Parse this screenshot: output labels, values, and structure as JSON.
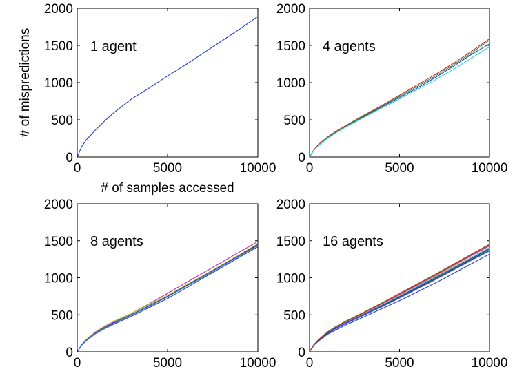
{
  "chart_data": [
    {
      "type": "line",
      "annotation": "1 agent",
      "xlabel": "# of samples accessed",
      "ylabel": "# of mispredictions",
      "xlim": [
        0,
        10000
      ],
      "ylim": [
        0,
        2000
      ],
      "xticks": [
        "0",
        "5000",
        "10000"
      ],
      "yticks": [
        "0",
        "500",
        "1000",
        "1500",
        "2000"
      ],
      "grid": false,
      "series": [
        {
          "color": "#1f3bdc",
          "x": [
            0,
            250,
            500,
            1000,
            1500,
            2000,
            3000,
            4000,
            5000,
            6000,
            7000,
            8000,
            9000,
            10000
          ],
          "y": [
            0,
            140,
            230,
            360,
            480,
            590,
            780,
            930,
            1090,
            1240,
            1400,
            1560,
            1720,
            1890
          ]
        }
      ]
    },
    {
      "type": "line",
      "annotation": "4 agents",
      "xlabel": "",
      "ylabel": "",
      "xlim": [
        0,
        10000
      ],
      "ylim": [
        0,
        2000
      ],
      "xticks": [
        "0",
        "5000",
        "10000"
      ],
      "yticks": [
        "0",
        "500",
        "1000",
        "1500",
        "2000"
      ],
      "grid": false,
      "series": [
        {
          "color": "#1f3bdc",
          "x": [
            0,
            250,
            500,
            1000,
            1500,
            2000,
            3000,
            4000,
            5000,
            6000,
            7000,
            8000,
            9000,
            10000
          ],
          "y": [
            0,
            100,
            160,
            260,
            340,
            410,
            540,
            670,
            800,
            930,
            1070,
            1220,
            1380,
            1520
          ]
        },
        {
          "color": "#d62020",
          "x": [
            0,
            250,
            500,
            1000,
            1500,
            2000,
            3000,
            4000,
            5000,
            6000,
            7000,
            8000,
            9000,
            10000
          ],
          "y": [
            0,
            100,
            170,
            270,
            350,
            420,
            560,
            690,
            830,
            970,
            1110,
            1260,
            1420,
            1590
          ]
        },
        {
          "color": "#2a9a2a",
          "x": [
            0,
            250,
            500,
            1000,
            1500,
            2000,
            3000,
            4000,
            5000,
            6000,
            7000,
            8000,
            9000,
            10000
          ],
          "y": [
            0,
            95,
            160,
            260,
            340,
            410,
            550,
            680,
            815,
            950,
            1090,
            1240,
            1400,
            1570
          ]
        },
        {
          "color": "#22d4d4",
          "x": [
            0,
            250,
            500,
            1000,
            1500,
            2000,
            3000,
            4000,
            5000,
            6000,
            7000,
            8000,
            9000,
            10000
          ],
          "y": [
            0,
            95,
            155,
            250,
            330,
            400,
            530,
            655,
            780,
            910,
            1040,
            1180,
            1330,
            1480
          ]
        }
      ]
    },
    {
      "type": "line",
      "annotation": "8 agents",
      "xlabel": "",
      "ylabel": "",
      "xlim": [
        0,
        10000
      ],
      "ylim": [
        0,
        2000
      ],
      "xticks": [
        "0",
        "5000",
        "10000"
      ],
      "yticks": [
        "0",
        "500",
        "1000",
        "1500",
        "2000"
      ],
      "grid": false,
      "series": [
        {
          "color": "#1f3bdc",
          "x": [
            0,
            250,
            500,
            1000,
            1500,
            2000,
            3000,
            4000,
            5000,
            6000,
            7000,
            8000,
            9000,
            10000
          ],
          "y": [
            0,
            90,
            150,
            240,
            310,
            370,
            480,
            600,
            720,
            860,
            1000,
            1140,
            1280,
            1420
          ]
        },
        {
          "color": "#d62020",
          "x": [
            0,
            250,
            500,
            1000,
            1500,
            2000,
            3000,
            4000,
            5000,
            6000,
            7000,
            8000,
            9000,
            10000
          ],
          "y": [
            0,
            95,
            155,
            250,
            320,
            385,
            500,
            620,
            745,
            885,
            1020,
            1160,
            1300,
            1445
          ]
        },
        {
          "color": "#2a9a2a",
          "x": [
            0,
            250,
            500,
            1000,
            1500,
            2000,
            3000,
            4000,
            5000,
            6000,
            7000,
            8000,
            9000,
            10000
          ],
          "y": [
            0,
            95,
            160,
            255,
            325,
            390,
            505,
            625,
            750,
            890,
            1030,
            1170,
            1310,
            1460
          ]
        },
        {
          "color": "#22d4d4",
          "x": [
            0,
            250,
            500,
            1000,
            1500,
            2000,
            3000,
            4000,
            5000,
            6000,
            7000,
            8000,
            9000,
            10000
          ],
          "y": [
            0,
            90,
            150,
            245,
            315,
            380,
            495,
            615,
            740,
            880,
            1015,
            1155,
            1295,
            1440
          ]
        },
        {
          "color": "#c026c0",
          "x": [
            0,
            250,
            500,
            1000,
            1500,
            2000,
            3000,
            4000,
            5000,
            6000,
            7000,
            8000,
            9000,
            10000
          ],
          "y": [
            0,
            100,
            165,
            260,
            335,
            400,
            520,
            650,
            790,
            930,
            1070,
            1210,
            1350,
            1490
          ]
        },
        {
          "color": "#c8c020",
          "x": [
            0,
            250,
            500,
            1000,
            1500,
            2000,
            3000,
            4000,
            5000,
            6000,
            7000,
            8000,
            9000,
            10000
          ],
          "y": [
            0,
            100,
            170,
            270,
            345,
            410,
            520,
            640,
            765,
            900,
            1035,
            1175,
            1315,
            1460
          ]
        },
        {
          "color": "#3a3a3a",
          "x": [
            0,
            250,
            500,
            1000,
            1500,
            2000,
            3000,
            4000,
            5000,
            6000,
            7000,
            8000,
            9000,
            10000
          ],
          "y": [
            0,
            95,
            158,
            252,
            322,
            386,
            502,
            622,
            748,
            888,
            1025,
            1165,
            1305,
            1450
          ]
        },
        {
          "color": "#4466ee",
          "x": [
            0,
            250,
            500,
            1000,
            1500,
            2000,
            3000,
            4000,
            5000,
            6000,
            7000,
            8000,
            9000,
            10000
          ],
          "y": [
            0,
            92,
            152,
            248,
            318,
            382,
            498,
            618,
            742,
            882,
            1018,
            1158,
            1298,
            1435
          ]
        }
      ]
    },
    {
      "type": "line",
      "annotation": "16 agents",
      "xlabel": "",
      "ylabel": "",
      "xlim": [
        0,
        10000
      ],
      "ylim": [
        0,
        2000
      ],
      "xticks": [
        "0",
        "5000",
        "10000"
      ],
      "yticks": [
        "0",
        "500",
        "1000",
        "1500",
        "2000"
      ],
      "grid": false,
      "series": [
        {
          "color": "#1f3bdc",
          "x": [
            0,
            250,
            500,
            1000,
            1500,
            2000,
            3000,
            4000,
            5000,
            6000,
            7000,
            8000,
            9000,
            10000
          ],
          "y": [
            0,
            90,
            145,
            235,
            300,
            360,
            470,
            580,
            690,
            810,
            930,
            1060,
            1190,
            1320
          ]
        },
        {
          "color": "#d62020",
          "x": [
            0,
            250,
            500,
            1000,
            1500,
            2000,
            3000,
            4000,
            5000,
            6000,
            7000,
            8000,
            9000,
            10000
          ],
          "y": [
            0,
            100,
            165,
            270,
            345,
            410,
            530,
            655,
            785,
            915,
            1045,
            1180,
            1315,
            1450
          ]
        },
        {
          "color": "#2a9a2a",
          "x": [
            0,
            250,
            500,
            1000,
            1500,
            2000,
            3000,
            4000,
            5000,
            6000,
            7000,
            8000,
            9000,
            10000
          ],
          "y": [
            0,
            100,
            165,
            265,
            340,
            405,
            525,
            650,
            780,
            910,
            1040,
            1175,
            1310,
            1440
          ]
        },
        {
          "color": "#22d4d4",
          "x": [
            0,
            250,
            500,
            1000,
            1500,
            2000,
            3000,
            4000,
            5000,
            6000,
            7000,
            8000,
            9000,
            10000
          ],
          "y": [
            0,
            95,
            155,
            250,
            320,
            385,
            500,
            620,
            740,
            865,
            990,
            1120,
            1250,
            1380
          ]
        },
        {
          "color": "#c026c0",
          "x": [
            0,
            250,
            500,
            1000,
            1500,
            2000,
            3000,
            4000,
            5000,
            6000,
            7000,
            8000,
            9000,
            10000
          ],
          "y": [
            0,
            95,
            160,
            260,
            335,
            400,
            520,
            645,
            770,
            900,
            1030,
            1165,
            1300,
            1430
          ]
        },
        {
          "color": "#c8c020",
          "x": [
            0,
            250,
            500,
            1000,
            1500,
            2000,
            3000,
            4000,
            5000,
            6000,
            7000,
            8000,
            9000,
            10000
          ],
          "y": [
            0,
            95,
            160,
            260,
            335,
            400,
            515,
            635,
            760,
            890,
            1020,
            1150,
            1280,
            1410
          ]
        },
        {
          "color": "#3a3a3a",
          "x": [
            0,
            250,
            500,
            1000,
            1500,
            2000,
            3000,
            4000,
            5000,
            6000,
            7000,
            8000,
            9000,
            10000
          ],
          "y": [
            0,
            92,
            152,
            248,
            318,
            382,
            495,
            612,
            735,
            860,
            985,
            1115,
            1245,
            1370
          ]
        },
        {
          "color": "#4466ee",
          "x": [
            0,
            250,
            500,
            1000,
            1500,
            2000,
            3000,
            4000,
            5000,
            6000,
            7000,
            8000,
            9000,
            10000
          ],
          "y": [
            0,
            92,
            150,
            245,
            315,
            378,
            490,
            605,
            725,
            850,
            975,
            1105,
            1235,
            1360
          ]
        },
        {
          "color": "#e05050",
          "x": [
            0,
            250,
            500,
            1000,
            1500,
            2000,
            3000,
            4000,
            5000,
            6000,
            7000,
            8000,
            9000,
            10000
          ],
          "y": [
            0,
            98,
            162,
            262,
            338,
            402,
            522,
            647,
            775,
            905,
            1035,
            1170,
            1305,
            1435
          ]
        },
        {
          "color": "#4ab84a",
          "x": [
            0,
            250,
            500,
            1000,
            1500,
            2000,
            3000,
            4000,
            5000,
            6000,
            7000,
            8000,
            9000,
            10000
          ],
          "y": [
            0,
            100,
            168,
            272,
            348,
            414,
            535,
            660,
            790,
            920,
            1050,
            1185,
            1320,
            1455
          ]
        },
        {
          "color": "#5ad8d8",
          "x": [
            0,
            250,
            500,
            1000,
            1500,
            2000,
            3000,
            4000,
            5000,
            6000,
            7000,
            8000,
            9000,
            10000
          ],
          "y": [
            0,
            96,
            158,
            255,
            328,
            392,
            510,
            632,
            755,
            885,
            1015,
            1145,
            1275,
            1405
          ]
        },
        {
          "color": "#d050d0",
          "x": [
            0,
            250,
            500,
            1000,
            1500,
            2000,
            3000,
            4000,
            5000,
            6000,
            7000,
            8000,
            9000,
            10000
          ],
          "y": [
            0,
            97,
            162,
            264,
            340,
            406,
            526,
            652,
            782,
            912,
            1042,
            1178,
            1312,
            1445
          ]
        },
        {
          "color": "#a8a020",
          "x": [
            0,
            250,
            500,
            1000,
            1500,
            2000,
            3000,
            4000,
            5000,
            6000,
            7000,
            8000,
            9000,
            10000
          ],
          "y": [
            0,
            94,
            156,
            254,
            326,
            390,
            506,
            625,
            748,
            876,
            1004,
            1134,
            1264,
            1392
          ]
        },
        {
          "color": "#606060",
          "x": [
            0,
            250,
            500,
            1000,
            1500,
            2000,
            3000,
            4000,
            5000,
            6000,
            7000,
            8000,
            9000,
            10000
          ],
          "y": [
            0,
            93,
            154,
            250,
            322,
            386,
            502,
            620,
            742,
            870,
            998,
            1128,
            1258,
            1388
          ]
        },
        {
          "color": "#2848c8",
          "x": [
            0,
            250,
            500,
            1000,
            1500,
            2000,
            3000,
            4000,
            5000,
            6000,
            7000,
            8000,
            9000,
            10000
          ],
          "y": [
            0,
            94,
            155,
            252,
            324,
            388,
            504,
            622,
            745,
            874,
            1002,
            1132,
            1262,
            1396
          ]
        },
        {
          "color": "#b82828",
          "x": [
            0,
            250,
            500,
            1000,
            1500,
            2000,
            3000,
            4000,
            5000,
            6000,
            7000,
            8000,
            9000,
            10000
          ],
          "y": [
            0,
            99,
            164,
            266,
            342,
            408,
            528,
            654,
            784,
            914,
            1044,
            1180,
            1316,
            1448
          ]
        }
      ]
    }
  ]
}
